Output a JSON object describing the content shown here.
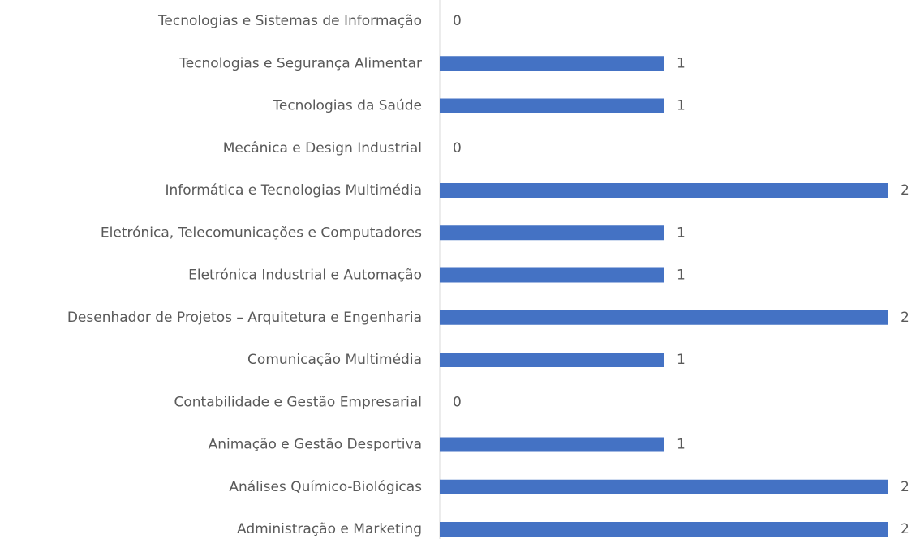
{
  "chart_data": {
    "type": "bar",
    "orientation": "horizontal",
    "categories": [
      "Tecnologias e Sistemas de Informação",
      "Tecnologias e Segurança Alimentar",
      "Tecnologias da Saúde",
      "Mecânica e Design Industrial",
      "Informática e Tecnologias Multimédia",
      "Eletrónica, Telecomunicações e Computadores",
      "Eletrónica Industrial e Automação",
      "Desenhador de Projetos – Arquitetura e Engenharia",
      "Comunicação Multimédia",
      "Contabilidade e Gestão Empresarial",
      "Animação e Gestão Desportiva",
      "Análises Químico-Biológicas",
      "Administração e Marketing"
    ],
    "values": [
      0,
      1,
      1,
      0,
      2,
      1,
      1,
      2,
      1,
      0,
      1,
      2,
      2
    ],
    "color": "#4472c4",
    "xlim": [
      0,
      2
    ]
  }
}
